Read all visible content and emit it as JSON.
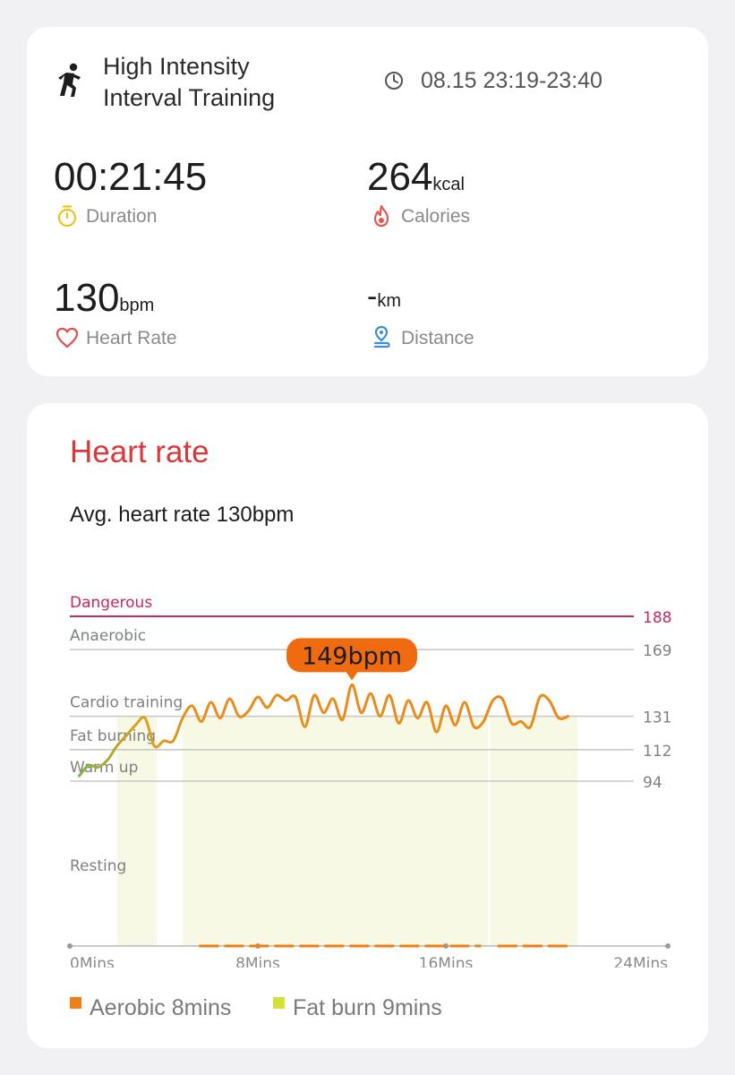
{
  "summary": {
    "activity_icon": "running-person-icon",
    "activity_line1": "High Intensity",
    "activity_line2": "Interval Training",
    "time_icon": "clock-icon",
    "time_range": "08.15 23:19-23:40",
    "duration": {
      "value": "00:21:45",
      "label": "Duration",
      "icon": "stopwatch-icon",
      "color": "#f2c21a"
    },
    "calories": {
      "value": "264",
      "unit": "kcal",
      "label": "Calories",
      "icon": "flame-icon",
      "color": "#e05a4e"
    },
    "heart_rate": {
      "value": "130",
      "unit": "bpm",
      "label": "Heart Rate",
      "icon": "heart-icon",
      "color": "#e05050"
    },
    "distance": {
      "value": "-",
      "unit": "km",
      "label": "Distance",
      "icon": "route-pin-icon",
      "color": "#3d8fd6"
    }
  },
  "heart_rate_section": {
    "title": "Heart rate",
    "avg_text": "Avg. heart rate 130bpm",
    "peak_label": "149bpm",
    "legend": [
      {
        "label": "Aerobic 8mins",
        "color": "#f07f1b"
      },
      {
        "label": "Fat burn 9mins",
        "color": "#d2e23a"
      }
    ]
  },
  "chart_data": {
    "type": "line",
    "title": "",
    "xlabel": "",
    "ylabel": "",
    "x_ticks": [
      "0Mins",
      "8Mins",
      "16Mins",
      "24Mins"
    ],
    "xlim": [
      0,
      24
    ],
    "ylim": [
      45,
      188
    ],
    "zones": [
      {
        "name": "Dangerous",
        "threshold": 188,
        "color": "#c8285e"
      },
      {
        "name": "Anaerobic",
        "threshold": 169,
        "color": "#c9c9c9"
      },
      {
        "name": "Cardio training",
        "threshold": 131,
        "color": "#c9c9c9"
      },
      {
        "name": "Fat burning",
        "threshold": 112,
        "color": "#c9c9c9"
      },
      {
        "name": "Warm up",
        "threshold": 94,
        "color": "#c9c9c9"
      },
      {
        "name": "Resting",
        "threshold": null,
        "color": "#c9c9c9"
      }
    ],
    "series": [
      {
        "x": [
          0.4,
          0.8,
          1.2,
          1.6,
          2.0,
          2.4,
          2.8,
          3.2,
          3.6,
          4.0,
          4.4,
          4.8,
          5.2,
          5.6,
          6.0,
          6.4,
          6.8,
          7.2,
          7.6,
          8.0,
          8.4,
          8.8,
          9.2,
          9.6,
          10.0,
          10.4,
          10.8,
          11.2,
          11.6,
          12.0,
          12.4,
          12.8,
          13.2,
          13.6,
          14.0,
          14.4,
          14.8,
          15.2,
          15.6,
          16.0,
          16.4,
          16.8,
          17.2,
          17.6,
          18.0,
          18.4,
          18.8,
          19.2,
          19.6,
          20.0,
          20.4,
          20.8,
          21.2
        ],
        "values": [
          97,
          103,
          102,
          106,
          114,
          120,
          126,
          130,
          114,
          117,
          117,
          130,
          137,
          128,
          139,
          130,
          141,
          131,
          134,
          142,
          136,
          143,
          140,
          142,
          125,
          143,
          133,
          141,
          129,
          149,
          133,
          144,
          131,
          143,
          127,
          140,
          130,
          139,
          122,
          137,
          126,
          139,
          125,
          128,
          140,
          141,
          127,
          128,
          125,
          142,
          140,
          130,
          131
        ]
      }
    ],
    "zone_bands": [
      {
        "start": 2.0,
        "end": 3.7,
        "zone": "Fat burn"
      },
      {
        "start": 4.8,
        "end": 17.8,
        "zone": "Fat burn"
      },
      {
        "start": 17.9,
        "end": 21.6,
        "zone": "Fat burn"
      }
    ],
    "aerobic_segments": [
      {
        "start": 5.5,
        "end": 17.5
      },
      {
        "start": 18.2,
        "end": 21.3
      }
    ],
    "grid": false,
    "legend_position": "bottom-left"
  }
}
